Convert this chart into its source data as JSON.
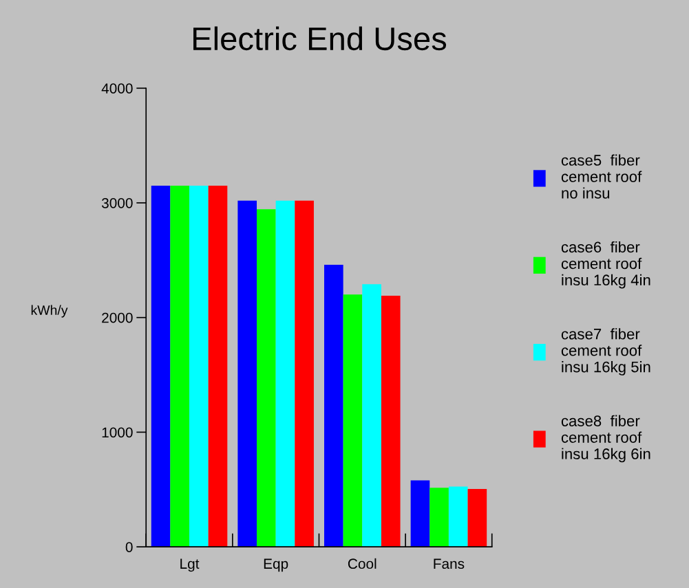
{
  "chart_data": {
    "type": "bar",
    "title": "Electric End Uses",
    "ylabel": "kWh/y",
    "categories": [
      "Lgt",
      "Eqp",
      "Cool",
      "Fans"
    ],
    "series": [
      {
        "name": "case5  fiber\ncement roof\nno insu",
        "color": "#0000ff",
        "values": [
          3150,
          3020,
          2460,
          580
        ]
      },
      {
        "name": "case6  fiber\ncement roof\ninsu 16kg 4in",
        "color": "#00ff00",
        "values": [
          3150,
          2945,
          2200,
          515
        ]
      },
      {
        "name": "case7  fiber\ncement roof\ninsu 16kg 5in",
        "color": "#00ffff",
        "values": [
          3150,
          3020,
          2290,
          525
        ]
      },
      {
        "name": "case8  fiber\ncement roof\ninsu 16kg 6in",
        "color": "#ff0000",
        "values": [
          3150,
          3020,
          2190,
          505
        ]
      }
    ],
    "ylim": [
      0,
      4000
    ],
    "yticks": [
      0,
      1000,
      2000,
      3000,
      4000
    ],
    "grid": false,
    "legend": "right"
  }
}
